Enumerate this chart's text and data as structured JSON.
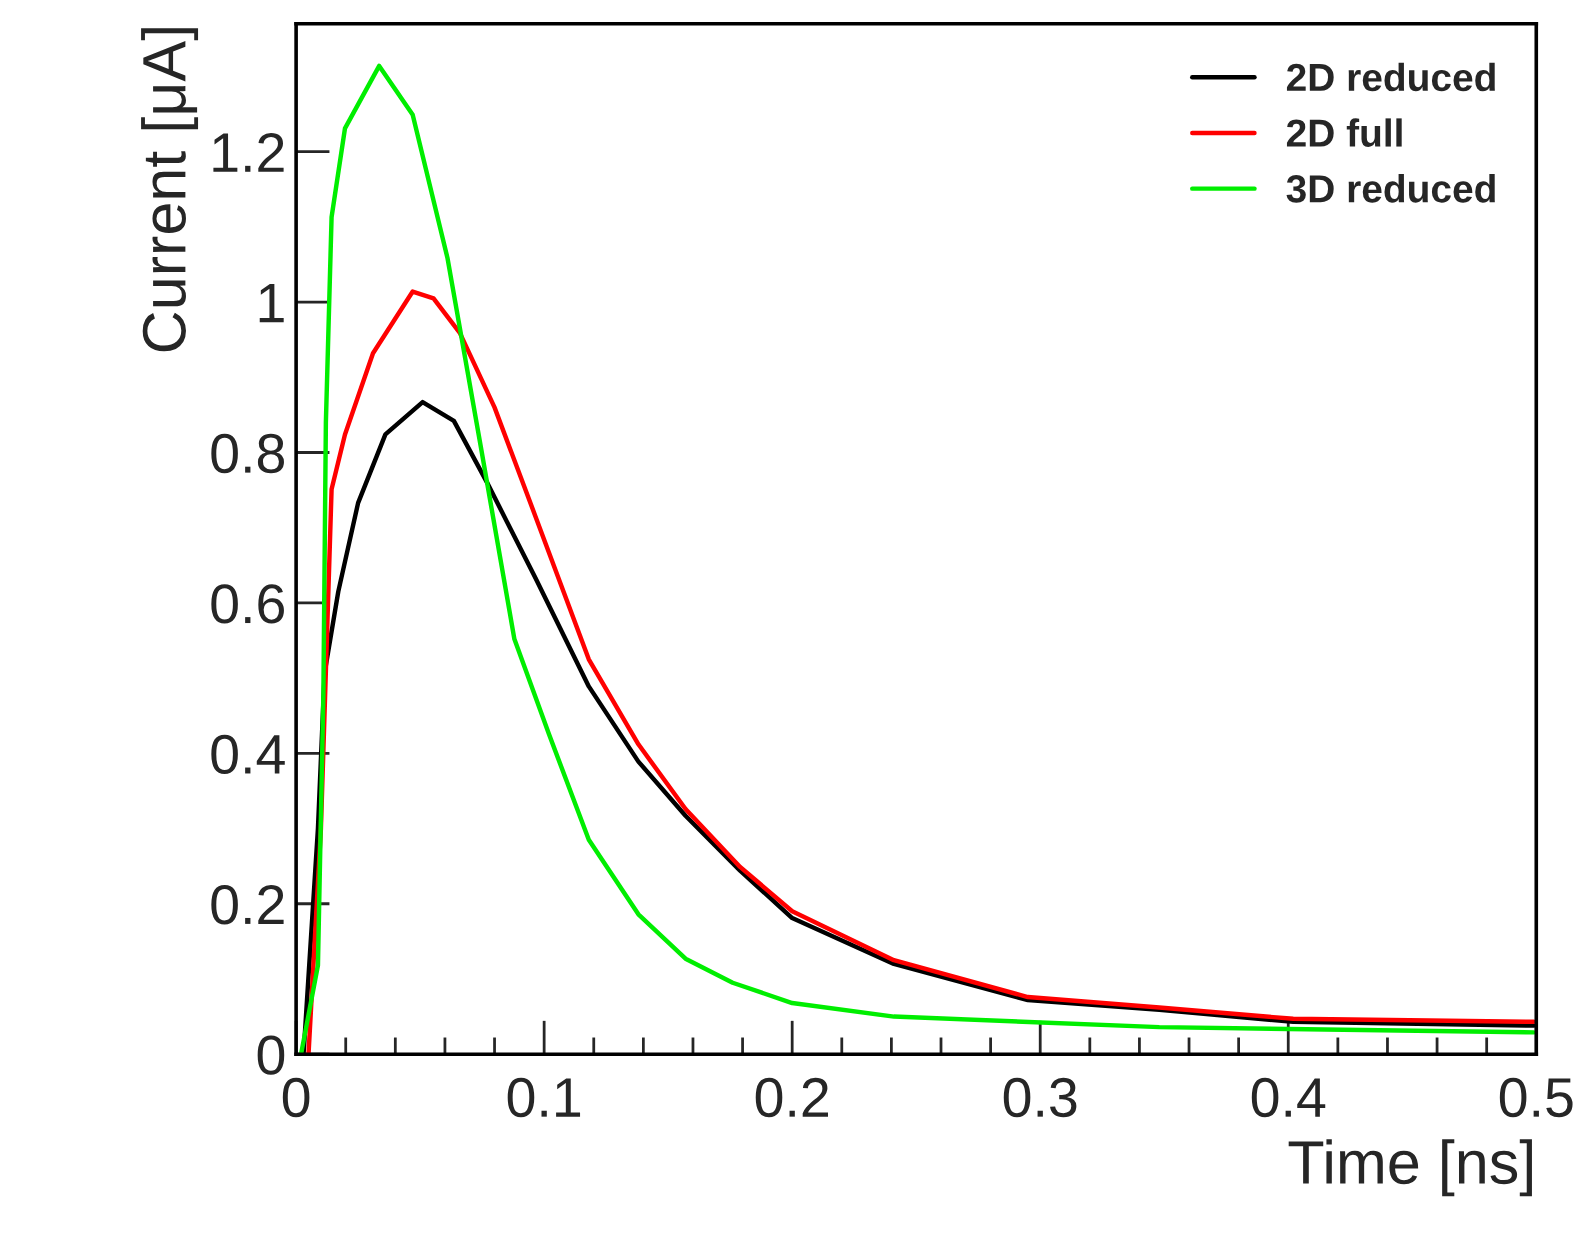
{
  "chart_data": {
    "type": "line",
    "xlabel": "Time [ns]",
    "ylabel": "Current [μA]",
    "xlim": [
      0,
      0.5
    ],
    "ylim": [
      0,
      1.37
    ],
    "xticks": [
      0,
      0.1,
      0.2,
      0.3,
      0.4,
      0.5
    ],
    "yticks": [
      0,
      0.2,
      0.4,
      0.6,
      0.8,
      1,
      1.2
    ],
    "grid": false,
    "legend": "top right",
    "marker": "none",
    "line_style": "solid",
    "series": [
      {
        "name": "2D reduced",
        "color": "#000000",
        "x": [
          0.003,
          0.0088,
          0.0115,
          0.017,
          0.025,
          0.036,
          0.051,
          0.0636,
          0.077,
          0.0965,
          0.118,
          0.138,
          0.157,
          0.179,
          0.2,
          0.241,
          0.295,
          0.348,
          0.402,
          0.499
        ],
        "values": [
          0,
          0.3,
          0.507,
          0.615,
          0.733,
          0.824,
          0.867,
          0.842,
          0.76,
          0.633,
          0.489,
          0.389,
          0.317,
          0.244,
          0.181,
          0.12,
          0.072,
          0.059,
          0.043,
          0.038
        ]
      },
      {
        "name": "2D full",
        "color": "#ff0000",
        "x": [
          0.005,
          0.01,
          0.0143,
          0.0197,
          0.031,
          0.047,
          0.0554,
          0.066,
          0.08,
          0.0965,
          0.118,
          0.138,
          0.157,
          0.179,
          0.2,
          0.241,
          0.295,
          0.348,
          0.402,
          0.499
        ],
        "values": [
          0,
          0.3,
          0.751,
          0.824,
          0.932,
          1.014,
          1.005,
          0.959,
          0.86,
          0.715,
          0.525,
          0.412,
          0.326,
          0.249,
          0.19,
          0.125,
          0.076,
          0.062,
          0.047,
          0.043
        ]
      },
      {
        "name": "3D reduced",
        "color": "#00ee00",
        "x": [
          0.002,
          0.0088,
          0.011,
          0.012,
          0.0143,
          0.0197,
          0.0335,
          0.047,
          0.061,
          0.0746,
          0.088,
          0.102,
          0.118,
          0.138,
          0.157,
          0.176,
          0.2,
          0.241,
          0.348,
          0.499
        ],
        "values": [
          0,
          0.118,
          0.48,
          0.84,
          1.113,
          1.231,
          1.314,
          1.249,
          1.059,
          0.805,
          0.552,
          0.425,
          0.285,
          0.186,
          0.127,
          0.095,
          0.068,
          0.05,
          0.036,
          0.029
        ]
      }
    ]
  }
}
